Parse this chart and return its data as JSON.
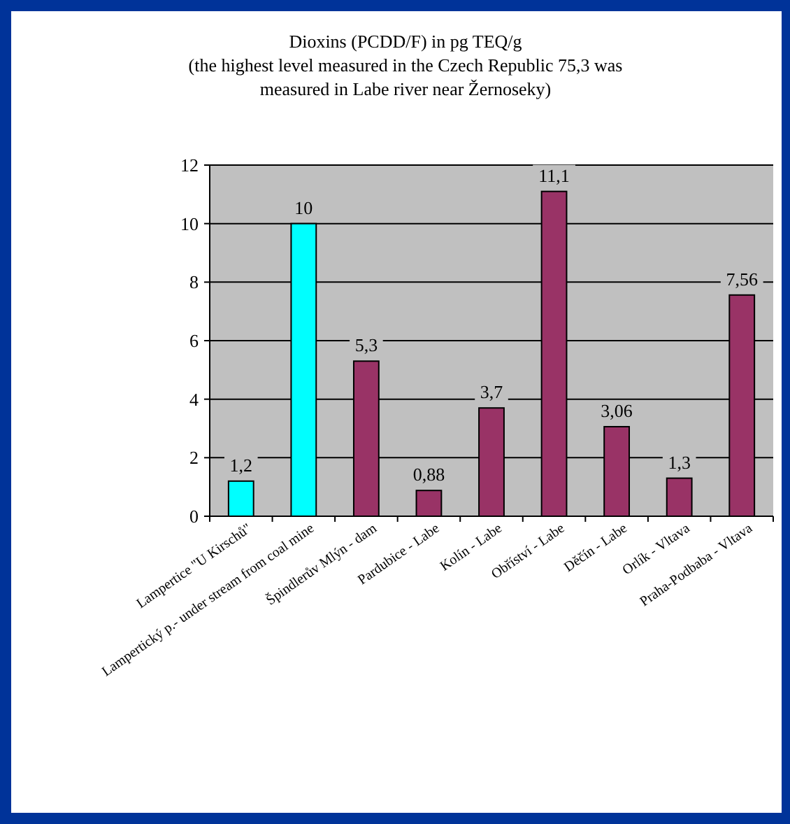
{
  "chart_data": {
    "type": "bar",
    "title": "Dioxins (PCDD/F) in pg TEQ/g\n(the highest level measured in the Czech Republic 75,3 was\nmeasured in Labe river near Žernoseky)",
    "categories": [
      "Lampertice \"U Kirschů\"",
      "Lampertický p.- under stream from coal mine",
      "Špindlerův Mlýn - dam",
      "Pardubice - Labe",
      "Kolín - Labe",
      "Obříství - Labe",
      "Děčín - Labe",
      "Orlík - Vltava",
      "Praha-Podbaba - Vltava"
    ],
    "values": [
      1.2,
      10,
      5.3,
      0.88,
      3.7,
      11.1,
      3.06,
      1.3,
      7.56
    ],
    "colors": [
      "#00ffff",
      "#00ffff",
      "#993366",
      "#993366",
      "#993366",
      "#993366",
      "#993366",
      "#993366",
      "#993366"
    ],
    "value_labels": [
      "1,2",
      "10",
      "5,3",
      "0,88",
      "3,7",
      "11,1",
      "3,06",
      "1,3",
      "7,56"
    ],
    "ylim": [
      0,
      12
    ],
    "yticks": [
      0,
      2,
      4,
      6,
      8,
      10,
      12
    ],
    "grid": "y"
  }
}
